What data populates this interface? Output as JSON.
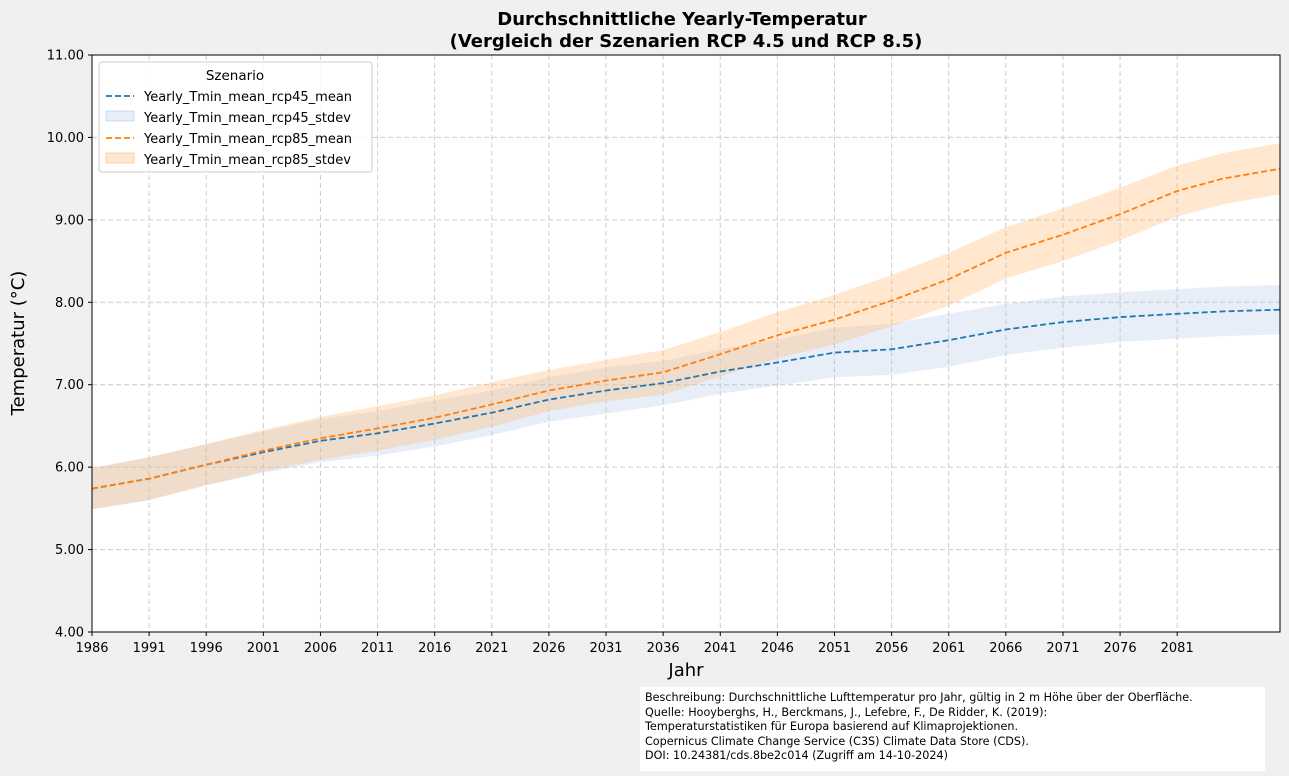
{
  "chart_data": {
    "type": "line",
    "title": "Durchschnittliche Yearly-Temperatur",
    "subtitle": "(Vergleich der Szenarien RCP 4.5 und RCP 8.5)",
    "xlabel": "Jahr",
    "ylabel": "Temperatur (°C)",
    "xlim": [
      1986,
      2090
    ],
    "ylim": [
      4.0,
      11.0
    ],
    "x_ticks": [
      1986,
      1991,
      1996,
      2001,
      2006,
      2011,
      2016,
      2021,
      2026,
      2031,
      2036,
      2041,
      2046,
      2051,
      2056,
      2061,
      2066,
      2071,
      2076,
      2081
    ],
    "y_ticks": [
      "4.00",
      "5.00",
      "6.00",
      "7.00",
      "8.00",
      "9.00",
      "10.00",
      "11.00"
    ],
    "grid": true,
    "legend_title": "Szenario",
    "legend_position": "top-left",
    "series": [
      {
        "name": "Yearly_Tmin_mean_rcp45_mean",
        "band_name": "Yearly_Tmin_mean_rcp45_stdev",
        "color": "#1f77b4",
        "band_color": "#aec7e8",
        "x": [
          1986,
          1991,
          1996,
          2001,
          2006,
          2011,
          2016,
          2021,
          2026,
          2031,
          2036,
          2041,
          2046,
          2051,
          2056,
          2061,
          2066,
          2071,
          2076,
          2081,
          2085,
          2090
        ],
        "values": [
          5.74,
          5.86,
          6.03,
          6.18,
          6.32,
          6.41,
          6.53,
          6.66,
          6.82,
          6.93,
          7.02,
          7.16,
          7.27,
          7.39,
          7.43,
          7.54,
          7.67,
          7.76,
          7.82,
          7.86,
          7.89,
          7.91
        ],
        "stdev": [
          0.25,
          0.26,
          0.25,
          0.25,
          0.26,
          0.27,
          0.28,
          0.27,
          0.27,
          0.28,
          0.27,
          0.27,
          0.28,
          0.3,
          0.31,
          0.32,
          0.31,
          0.31,
          0.3,
          0.3,
          0.3,
          0.3
        ]
      },
      {
        "name": "Yearly_Tmin_mean_rcp85_mean",
        "band_name": "Yearly_Tmin_mean_rcp85_stdev",
        "color": "#ff7f0e",
        "band_color": "#ffbb78",
        "x": [
          1986,
          1991,
          1996,
          2001,
          2006,
          2011,
          2016,
          2021,
          2026,
          2031,
          2036,
          2041,
          2046,
          2051,
          2056,
          2061,
          2066,
          2071,
          2076,
          2081,
          2085,
          2090
        ],
        "values": [
          5.74,
          5.86,
          6.03,
          6.2,
          6.35,
          6.47,
          6.6,
          6.76,
          6.93,
          7.05,
          7.15,
          7.37,
          7.6,
          7.79,
          8.02,
          8.28,
          8.6,
          8.82,
          9.07,
          9.35,
          9.5,
          9.62
        ],
        "stdev": [
          0.25,
          0.26,
          0.25,
          0.25,
          0.26,
          0.27,
          0.27,
          0.27,
          0.25,
          0.25,
          0.27,
          0.27,
          0.28,
          0.3,
          0.31,
          0.32,
          0.31,
          0.32,
          0.32,
          0.31,
          0.31,
          0.31
        ]
      }
    ]
  },
  "caption": {
    "lines": [
      "Beschreibung: Durchschnittliche Lufttemperatur pro Jahr, gültig in 2 m Höhe über der Oberfläche.",
      "Quelle: Hooyberghs, H., Berckmans, J., Lefebre, F., De Ridder, K. (2019):",
      "Temperaturstatistiken für Europa basierend auf Klimaprojektionen.",
      "Copernicus Climate Change Service (C3S) Climate Data Store (CDS).",
      "DOI: 10.24381/cds.8be2c014 (Zugriff am 14-10-2024)"
    ]
  }
}
